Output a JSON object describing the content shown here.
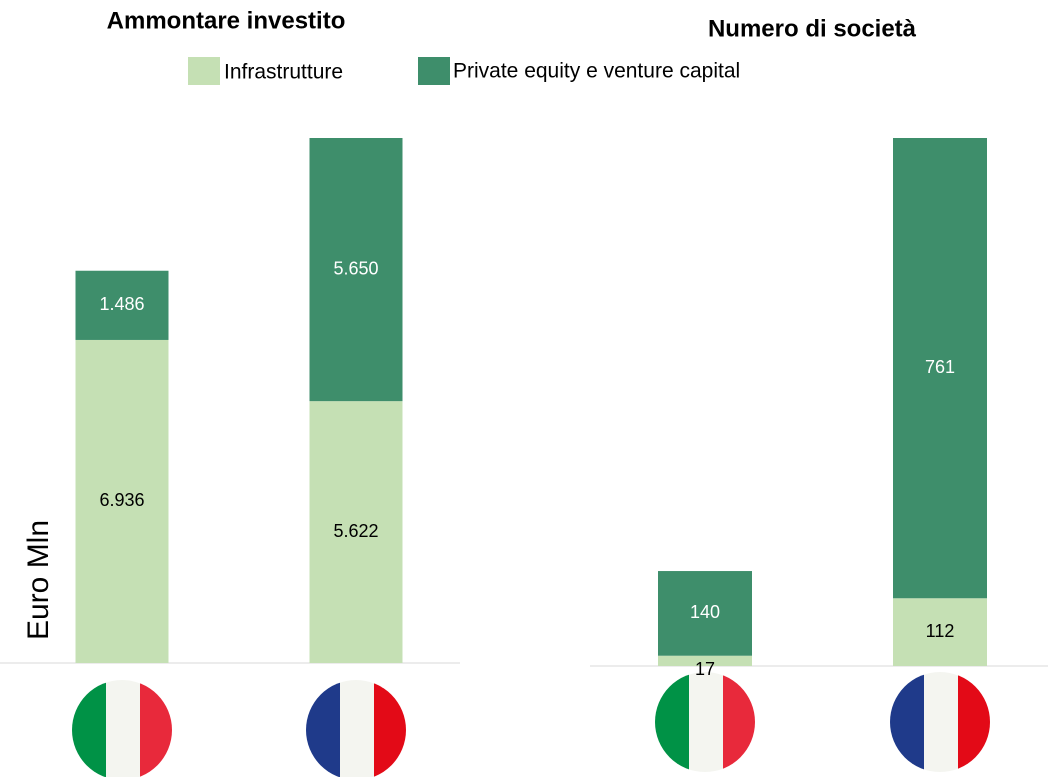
{
  "chart_data": [
    {
      "type": "stacked_bar",
      "title": "Ammontare investito",
      "y_label": "Euro Mln",
      "categories": [
        null,
        null
      ],
      "series": [
        {
          "name": "Infrastrutture",
          "color": "#c5e0b4",
          "values": [
            6936,
            5622
          ],
          "value_labels": [
            "6.936",
            "5.622"
          ]
        },
        {
          "name": "Private equity e venture capital",
          "color": "#3e8e6b",
          "values": [
            1486,
            5650
          ],
          "value_labels": [
            "1.486",
            "5.650"
          ]
        }
      ]
    },
    {
      "type": "stacked_bar",
      "title": "Numero di società",
      "categories": [
        null,
        null
      ],
      "series": [
        {
          "color": "#c5e0b4",
          "values": [
            17,
            112
          ]
        },
        {
          "color": "#3e8e6b",
          "values": [
            140,
            761
          ]
        }
      ]
    }
  ]
}
